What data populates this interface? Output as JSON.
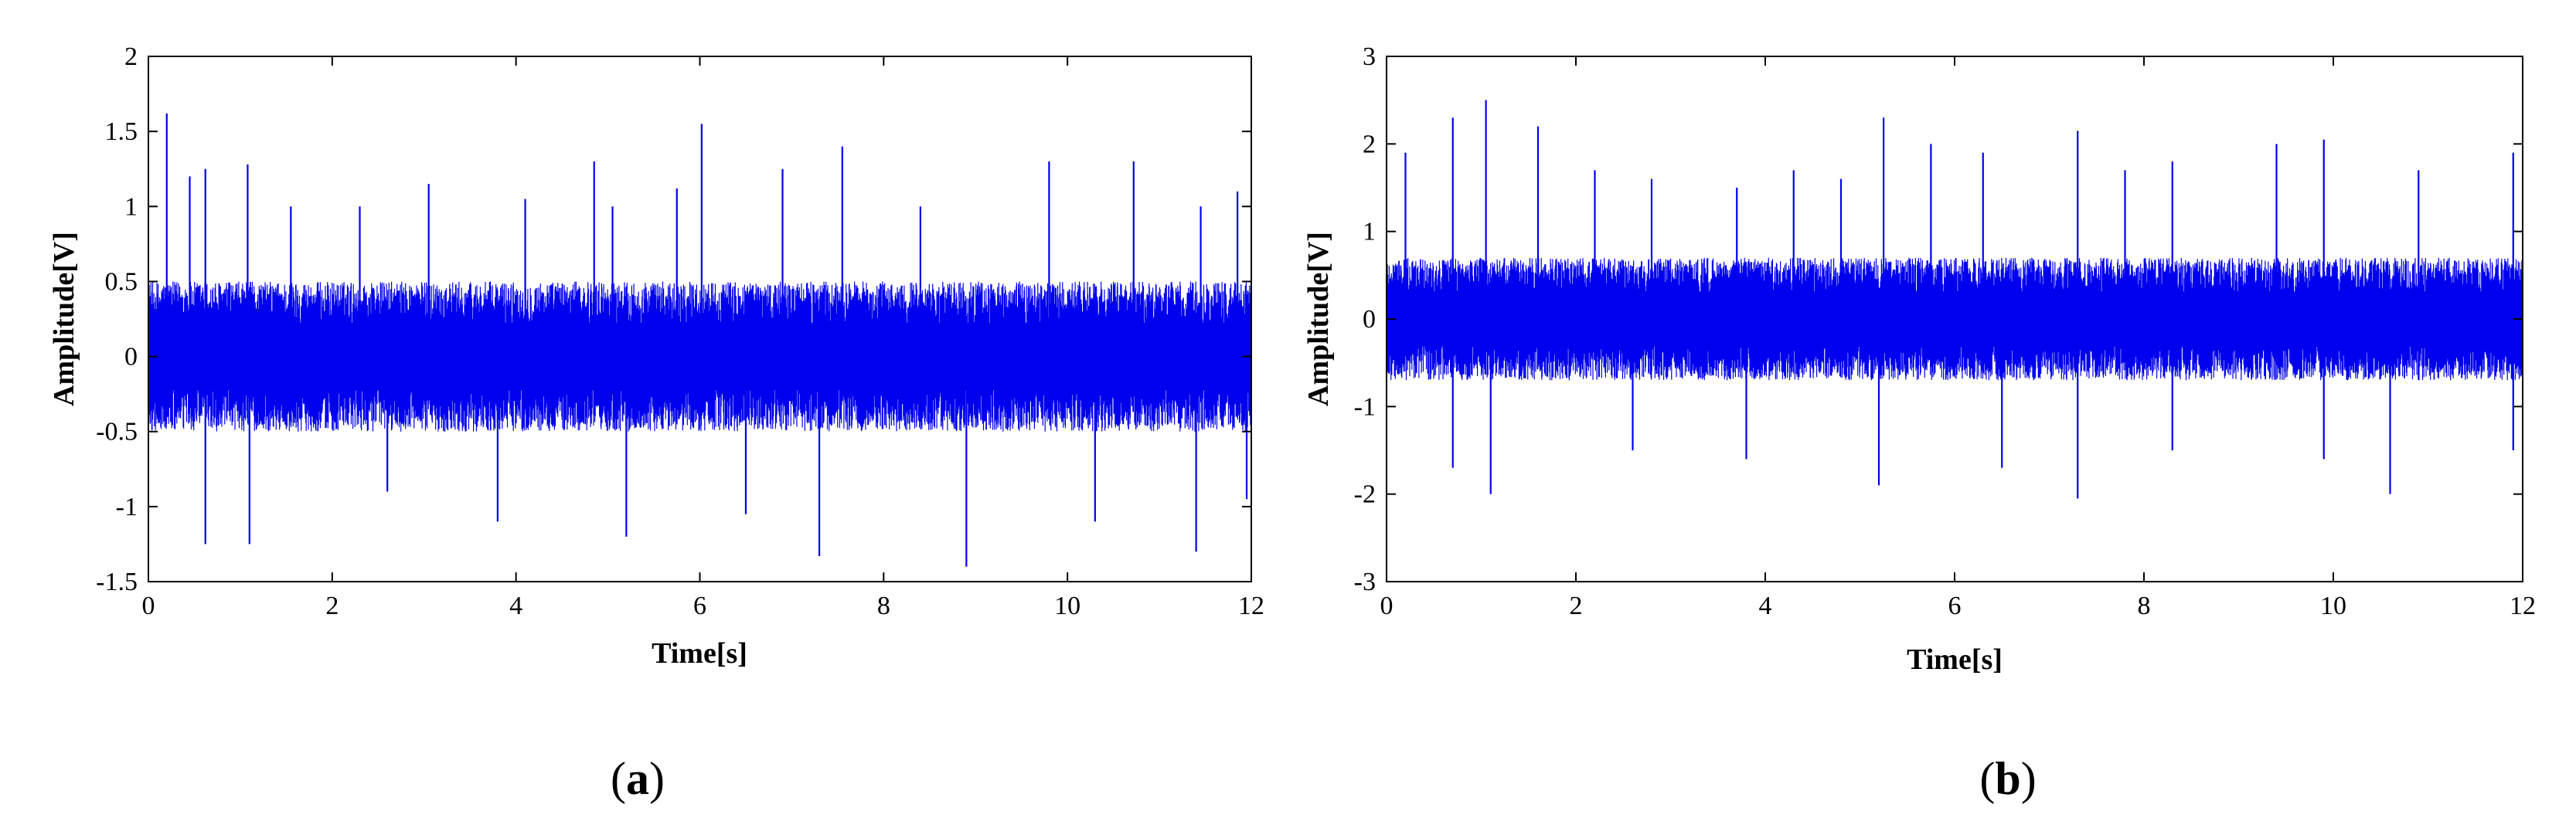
{
  "chart_data": [
    {
      "id": "a",
      "type": "line",
      "panel_label": "a",
      "title": "",
      "xlabel": "Time[s]",
      "ylabel": "Amplitude[V]",
      "xlim": [
        0,
        12
      ],
      "ylim": [
        -1.5,
        2
      ],
      "xticks": [
        0,
        2,
        4,
        6,
        8,
        10,
        12
      ],
      "yticks": [
        -1.5,
        -1,
        -0.5,
        0,
        0.5,
        1,
        1.5,
        2
      ],
      "xtick_labels": [
        "0",
        "2",
        "4",
        "6",
        "8",
        "10",
        "12"
      ],
      "ytick_labels": [
        "-1.5",
        "-1",
        "-0.5",
        "0",
        "0.5",
        "1",
        "1.5",
        "2"
      ],
      "grid": false,
      "legend": "none",
      "color": "#0000ee",
      "series": [
        {
          "signal": "vibration",
          "noise_envelope": [
            -0.5,
            0.5
          ],
          "peaks": [
            {
              "x": 0.2,
              "y": 1.62
            },
            {
              "x": 0.45,
              "y": 1.2
            },
            {
              "x": 0.62,
              "y": 1.25
            },
            {
              "x": 1.08,
              "y": 1.28
            },
            {
              "x": 1.55,
              "y": 1.0
            },
            {
              "x": 2.3,
              "y": 1.0
            },
            {
              "x": 3.05,
              "y": 1.15
            },
            {
              "x": 4.1,
              "y": 1.05
            },
            {
              "x": 4.85,
              "y": 1.3
            },
            {
              "x": 5.05,
              "y": 1.0
            },
            {
              "x": 5.75,
              "y": 1.12
            },
            {
              "x": 6.02,
              "y": 1.55
            },
            {
              "x": 6.9,
              "y": 1.25
            },
            {
              "x": 7.55,
              "y": 1.4
            },
            {
              "x": 8.4,
              "y": 1.0
            },
            {
              "x": 9.8,
              "y": 1.3
            },
            {
              "x": 10.72,
              "y": 1.3
            },
            {
              "x": 11.45,
              "y": 1.0
            },
            {
              "x": 11.85,
              "y": 1.1
            }
          ],
          "troughs": [
            {
              "x": 0.62,
              "y": -1.25
            },
            {
              "x": 1.1,
              "y": -1.25
            },
            {
              "x": 2.6,
              "y": -0.9
            },
            {
              "x": 3.8,
              "y": -1.1
            },
            {
              "x": 5.2,
              "y": -1.2
            },
            {
              "x": 6.5,
              "y": -1.05
            },
            {
              "x": 7.3,
              "y": -1.33
            },
            {
              "x": 8.9,
              "y": -1.4
            },
            {
              "x": 10.3,
              "y": -1.1
            },
            {
              "x": 11.4,
              "y": -1.3
            },
            {
              "x": 11.95,
              "y": -0.95
            }
          ]
        }
      ]
    },
    {
      "id": "b",
      "type": "line",
      "panel_label": "b",
      "title": "",
      "xlabel": "Time[s]",
      "ylabel": "Amplitude[V]",
      "xlim": [
        0,
        12
      ],
      "ylim": [
        -3,
        3
      ],
      "xticks": [
        0,
        2,
        4,
        6,
        8,
        10,
        12
      ],
      "yticks": [
        -3,
        -2,
        -1,
        0,
        1,
        2,
        3
      ],
      "xtick_labels": [
        "0",
        "2",
        "4",
        "6",
        "8",
        "10",
        "12"
      ],
      "ytick_labels": [
        "-3",
        "-2",
        "-1",
        "0",
        "1",
        "2",
        "3"
      ],
      "grid": false,
      "legend": "none",
      "color": "#0000ee",
      "series": [
        {
          "signal": "vibration",
          "noise_envelope": [
            -0.7,
            0.7
          ],
          "peaks": [
            {
              "x": 0.2,
              "y": 1.9
            },
            {
              "x": 0.7,
              "y": 2.3
            },
            {
              "x": 1.05,
              "y": 2.5
            },
            {
              "x": 1.6,
              "y": 2.2
            },
            {
              "x": 2.2,
              "y": 1.7
            },
            {
              "x": 2.8,
              "y": 1.6
            },
            {
              "x": 3.7,
              "y": 1.5
            },
            {
              "x": 4.3,
              "y": 1.7
            },
            {
              "x": 4.8,
              "y": 1.6
            },
            {
              "x": 5.25,
              "y": 2.3
            },
            {
              "x": 5.75,
              "y": 2.0
            },
            {
              "x": 6.3,
              "y": 1.9
            },
            {
              "x": 7.3,
              "y": 2.15
            },
            {
              "x": 7.8,
              "y": 1.7
            },
            {
              "x": 8.3,
              "y": 1.8
            },
            {
              "x": 9.4,
              "y": 2.0
            },
            {
              "x": 9.9,
              "y": 2.05
            },
            {
              "x": 10.9,
              "y": 1.7
            },
            {
              "x": 11.9,
              "y": 1.9
            }
          ],
          "troughs": [
            {
              "x": 0.7,
              "y": -1.7
            },
            {
              "x": 1.1,
              "y": -2.0
            },
            {
              "x": 2.6,
              "y": -1.5
            },
            {
              "x": 3.8,
              "y": -1.6
            },
            {
              "x": 5.2,
              "y": -1.9
            },
            {
              "x": 6.5,
              "y": -1.7
            },
            {
              "x": 7.3,
              "y": -2.05
            },
            {
              "x": 8.3,
              "y": -1.5
            },
            {
              "x": 9.9,
              "y": -1.6
            },
            {
              "x": 10.6,
              "y": -2.0
            },
            {
              "x": 11.9,
              "y": -1.5
            }
          ]
        }
      ]
    }
  ]
}
